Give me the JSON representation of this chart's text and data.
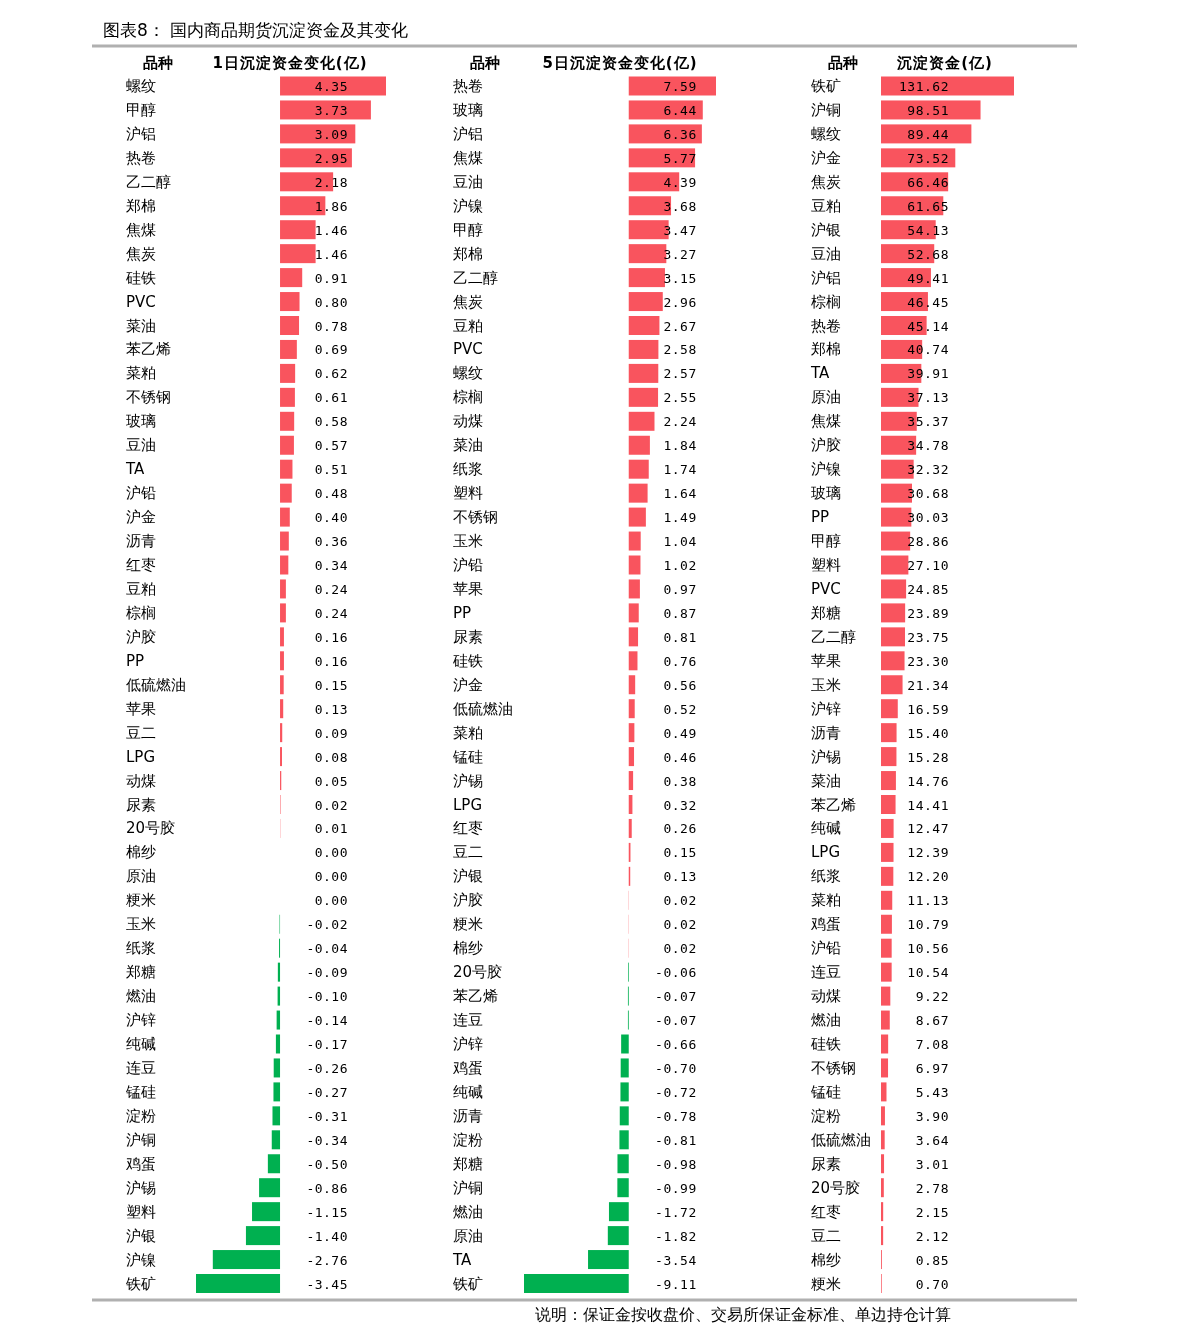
{
  "chart_data": [
    {
      "type": "bar",
      "orientation": "horizontal",
      "title": "图表8：  国内商品期货沉淀资金及其变化",
      "ylabel": "品种",
      "xlabel": "1日沉淀资金变化(亿)",
      "value_labels": [
        "4.35",
        "3.73",
        "3.09",
        "2.95",
        "2.18",
        "1.86",
        "1.46",
        "1.46",
        "0.91",
        "0.80",
        "0.78",
        "0.69",
        "0.62",
        "0.61",
        "0.58",
        "0.57",
        "0.51",
        "0.48",
        "0.40",
        "0.36",
        "0.34",
        "0.24",
        "0.24",
        "0.16",
        "0.16",
        "0.15",
        "0.13",
        "0.09",
        "0.08",
        "0.05",
        "0.02",
        "0.01",
        "0.00",
        "0.00",
        "0.00",
        "-0.02",
        "-0.04",
        "-0.09",
        "-0.10",
        "-0.14",
        "-0.17",
        "-0.26",
        "-0.27",
        "-0.31",
        "-0.34",
        "-0.50",
        "-0.86",
        "-1.15",
        "-1.40",
        "-2.76",
        "-3.45"
      ],
      "categories": [
        "螺纹",
        "甲醇",
        "沪铝",
        "热卷",
        "乙二醇",
        "郑棉",
        "焦煤",
        "焦炭",
        "硅铁",
        "PVC",
        "菜油",
        "苯乙烯",
        "菜粕",
        "不锈钢",
        "玻璃",
        "豆油",
        "TA",
        "沪铅",
        "沪金",
        "沥青",
        "红枣",
        "豆粕",
        "棕榈",
        "沪胶",
        "PP",
        "低硫燃油",
        "苹果",
        "豆二",
        "LPG",
        "动煤",
        "尿素",
        "20号胶",
        "棉纱",
        "原油",
        "粳米",
        "玉米",
        "纸浆",
        "郑糖",
        "燃油",
        "沪锌",
        "纯碱",
        "连豆",
        "锰硅",
        "淀粉",
        "沪铜",
        "鸡蛋",
        "沪锡",
        "塑料",
        "沪银",
        "沪镍",
        "铁矿"
      ],
      "values": [
        4.35,
        3.73,
        3.09,
        2.95,
        2.18,
        1.86,
        1.46,
        1.46,
        0.91,
        0.8,
        0.78,
        0.69,
        0.62,
        0.61,
        0.58,
        0.57,
        0.51,
        0.48,
        0.4,
        0.36,
        0.34,
        0.24,
        0.24,
        0.16,
        0.16,
        0.15,
        0.13,
        0.09,
        0.08,
        0.05,
        0.02,
        0.01,
        0.0,
        0.0,
        0.0,
        -0.02,
        -0.04,
        -0.09,
        -0.1,
        -0.14,
        -0.17,
        -0.26,
        -0.27,
        -0.31,
        -0.34,
        -0.5,
        -0.86,
        -1.15,
        -1.4,
        -2.76,
        -3.45
      ],
      "colors": [
        "#f9545e",
        "#f9545e",
        "#f9545e",
        "#f9545e",
        "#f9545e",
        "#f9545e",
        "#f9545e",
        "#f9545e",
        "#f9545e",
        "#f9545e",
        "#f9545e",
        "#f9545e",
        "#f9545e",
        "#f9545e",
        "#f9545e",
        "#f9545e",
        "#f9545e",
        "#f9545e",
        "#f9545e",
        "#f9545e",
        "#f9545e",
        "#f9545e",
        "#f9545e",
        "#f9545e",
        "#f9545e",
        "#f9545e",
        "#f9545e",
        "#f9545e",
        "#f9545e",
        "#f9545e",
        "#f9545e",
        "#f9545e",
        "#f9545e",
        "#f9545e",
        "#f9545e",
        "#00b050",
        "#00b050",
        "#00b050",
        "#00b050",
        "#00b050",
        "#00b050",
        "#00b050",
        "#00b050",
        "#00b050",
        "#00b050",
        "#00b050",
        "#00b050",
        "#00b050",
        "#00b050",
        "#00b050",
        "#00b050"
      ]
    },
    {
      "type": "bar",
      "orientation": "horizontal",
      "ylabel": "品种",
      "xlabel": "5日沉淀资金变化(亿)",
      "value_labels": [
        "7.59",
        "6.44",
        "6.36",
        "5.77",
        "4.39",
        "3.68",
        "3.47",
        "3.27",
        "3.15",
        "2.96",
        "2.67",
        "2.58",
        "2.57",
        "2.55",
        "2.24",
        "1.84",
        "1.74",
        "1.64",
        "1.49",
        "1.04",
        "1.02",
        "0.97",
        "0.87",
        "0.81",
        "0.76",
        "0.56",
        "0.52",
        "0.49",
        "0.46",
        "0.38",
        "0.32",
        "0.26",
        "0.15",
        "0.13",
        "0.02",
        "0.02",
        "0.02",
        "-0.06",
        "-0.07",
        "-0.07",
        "-0.66",
        "-0.70",
        "-0.72",
        "-0.78",
        "-0.81",
        "-0.98",
        "-0.99",
        "-1.72",
        "-1.82",
        "-3.54",
        "-9.11"
      ],
      "categories": [
        "热卷",
        "玻璃",
        "沪铝",
        "焦煤",
        "豆油",
        "沪镍",
        "甲醇",
        "郑棉",
        "乙二醇",
        "焦炭",
        "豆粕",
        "PVC",
        "螺纹",
        "棕榈",
        "动煤",
        "菜油",
        "纸浆",
        "塑料",
        "不锈钢",
        "玉米",
        "沪铅",
        "苹果",
        "PP",
        "尿素",
        "硅铁",
        "沪金",
        "低硫燃油",
        "菜粕",
        "锰硅",
        "沪锡",
        "LPG",
        "红枣",
        "豆二",
        "沪银",
        "沪胶",
        "粳米",
        "棉纱",
        "20号胶",
        "苯乙烯",
        "连豆",
        "沪锌",
        "鸡蛋",
        "纯碱",
        "沥青",
        "淀粉",
        "郑糖",
        "沪铜",
        "燃油",
        "原油",
        "TA",
        "铁矿"
      ],
      "values": [
        7.59,
        6.44,
        6.36,
        5.77,
        4.39,
        3.68,
        3.47,
        3.27,
        3.15,
        2.96,
        2.67,
        2.58,
        2.57,
        2.55,
        2.24,
        1.84,
        1.74,
        1.64,
        1.49,
        1.04,
        1.02,
        0.97,
        0.87,
        0.81,
        0.76,
        0.56,
        0.52,
        0.49,
        0.46,
        0.38,
        0.32,
        0.26,
        0.15,
        0.13,
        0.02,
        0.02,
        0.02,
        -0.06,
        -0.07,
        -0.07,
        -0.66,
        -0.7,
        -0.72,
        -0.78,
        -0.81,
        -0.98,
        -0.99,
        -1.72,
        -1.82,
        -3.54,
        -9.11
      ],
      "colors": [
        "#f9545e",
        "#f9545e",
        "#f9545e",
        "#f9545e",
        "#f9545e",
        "#f9545e",
        "#f9545e",
        "#f9545e",
        "#f9545e",
        "#f9545e",
        "#f9545e",
        "#f9545e",
        "#f9545e",
        "#f9545e",
        "#f9545e",
        "#f9545e",
        "#f9545e",
        "#f9545e",
        "#f9545e",
        "#f9545e",
        "#f9545e",
        "#f9545e",
        "#f9545e",
        "#f9545e",
        "#f9545e",
        "#f9545e",
        "#f9545e",
        "#f9545e",
        "#f9545e",
        "#f9545e",
        "#f9545e",
        "#f9545e",
        "#f9545e",
        "#f9545e",
        "#f9545e",
        "#f9545e",
        "#f9545e",
        "#00b050",
        "#00b050",
        "#00b050",
        "#00b050",
        "#00b050",
        "#00b050",
        "#00b050",
        "#00b050",
        "#00b050",
        "#00b050",
        "#00b050",
        "#00b050",
        "#00b050",
        "#00b050"
      ]
    },
    {
      "type": "bar",
      "orientation": "horizontal",
      "ylabel": "品种",
      "xlabel": "沉淀资金(亿)",
      "value_labels": [
        "131.62",
        "98.51",
        "89.44",
        "73.52",
        "66.46",
        "61.65",
        "54.13",
        "52.68",
        "49.41",
        "46.45",
        "45.14",
        "40.74",
        "39.91",
        "37.13",
        "35.37",
        "34.78",
        "32.32",
        "30.68",
        "30.03",
        "28.86",
        "27.10",
        "24.85",
        "23.89",
        "23.75",
        "23.30",
        "21.34",
        "16.59",
        "15.40",
        "15.28",
        "14.76",
        "14.41",
        "12.47",
        "12.39",
        "12.20",
        "11.13",
        "10.79",
        "10.56",
        "10.54",
        "9.22",
        "8.67",
        "7.08",
        "6.97",
        "5.43",
        "3.90",
        "3.64",
        "3.01",
        "2.78",
        "2.15",
        "2.12",
        "0.85",
        "0.70"
      ],
      "annotations": [
        "说明：保证金按收盘价、交易所保证金标准、单边持仓计算"
      ],
      "categories": [
        "铁矿",
        "沪铜",
        "螺纹",
        "沪金",
        "焦炭",
        "豆粕",
        "沪银",
        "豆油",
        "沪铝",
        "棕榈",
        "热卷",
        "郑棉",
        "TA",
        "原油",
        "焦煤",
        "沪胶",
        "沪镍",
        "玻璃",
        "PP",
        "甲醇",
        "塑料",
        "PVC",
        "郑糖",
        "乙二醇",
        "苹果",
        "玉米",
        "沪锌",
        "沥青",
        "沪锡",
        "菜油",
        "苯乙烯",
        "纯碱",
        "LPG",
        "纸浆",
        "菜粕",
        "鸡蛋",
        "沪铅",
        "连豆",
        "动煤",
        "燃油",
        "硅铁",
        "不锈钢",
        "锰硅",
        "淀粉",
        "低硫燃油",
        "尿素",
        "20号胶",
        "红枣",
        "豆二",
        "棉纱",
        "粳米"
      ],
      "values": [
        131.62,
        98.51,
        89.44,
        73.52,
        66.46,
        61.65,
        54.13,
        52.68,
        49.41,
        46.45,
        45.14,
        40.74,
        39.91,
        37.13,
        35.37,
        34.78,
        32.32,
        30.68,
        30.03,
        28.86,
        27.1,
        24.85,
        23.89,
        23.75,
        23.3,
        21.34,
        16.59,
        15.4,
        15.28,
        14.76,
        14.41,
        12.47,
        12.39,
        12.2,
        11.13,
        10.79,
        10.56,
        10.54,
        9.22,
        8.67,
        7.08,
        6.97,
        5.43,
        3.9,
        3.64,
        3.01,
        2.78,
        2.15,
        2.12,
        0.85,
        0.7
      ],
      "colors": [
        "#f9545e",
        "#f9545e",
        "#f9545e",
        "#f9545e",
        "#f9545e",
        "#f9545e",
        "#f9545e",
        "#f9545e",
        "#f9545e",
        "#f9545e",
        "#f9545e",
        "#f9545e",
        "#f9545e",
        "#f9545e",
        "#f9545e",
        "#f9545e",
        "#f9545e",
        "#f9545e",
        "#f9545e",
        "#f9545e",
        "#f9545e",
        "#f9545e",
        "#f9545e",
        "#f9545e",
        "#f9545e",
        "#f9545e",
        "#f9545e",
        "#f9545e",
        "#f9545e",
        "#f9545e",
        "#f9545e",
        "#f9545e",
        "#f9545e",
        "#f9545e",
        "#f9545e",
        "#f9545e",
        "#f9545e",
        "#f9545e",
        "#f9545e",
        "#f9545e",
        "#f9545e",
        "#f9545e",
        "#f9545e",
        "#f9545e",
        "#f9545e",
        "#f9545e",
        "#f9545e",
        "#f9545e",
        "#f9545e",
        "#f9545e",
        "#f9545e"
      ]
    }
  ]
}
